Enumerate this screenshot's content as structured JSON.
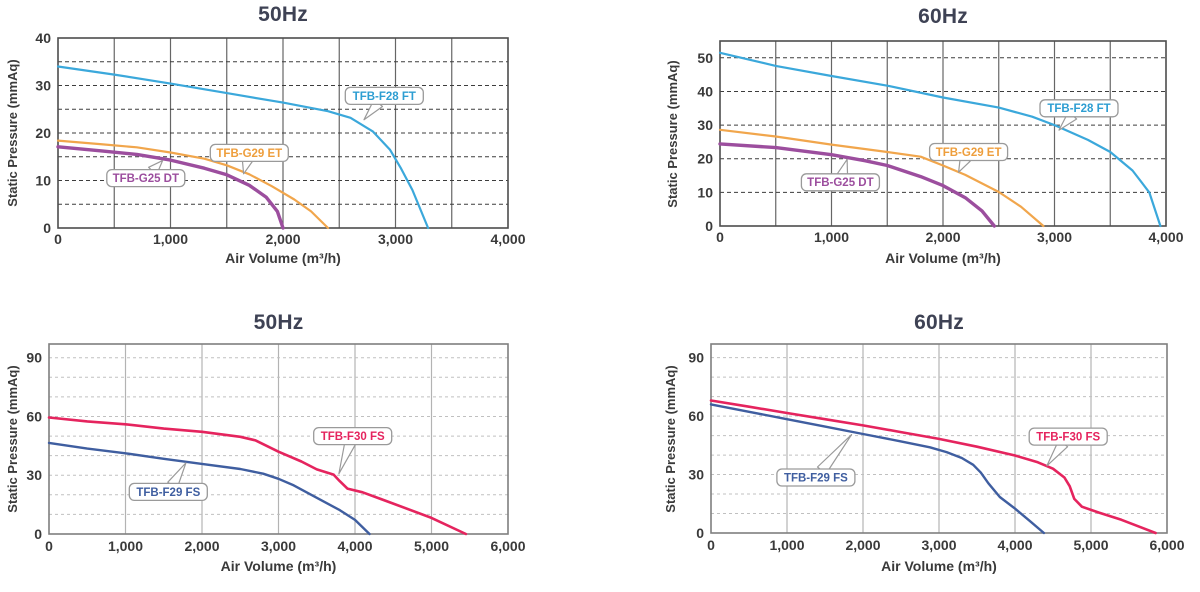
{
  "grid_themes": {
    "dark": {
      "vline": "#666666",
      "hdash": "#3d3d3d",
      "border": "#4d4d4d"
    },
    "light": {
      "vline": "#b3b3b3",
      "hdash": "#c0c0c0",
      "border": "#7f7f7f"
    }
  },
  "callout_style": {
    "bg": "#ffffff",
    "border": "#9a9a9a"
  },
  "chart_data": [
    {
      "id": "upper-50hz",
      "type": "line",
      "title": "50Hz",
      "xlabel": "Air Volume (m³/h)",
      "ylabel": "Static Pressure (mmAq)",
      "xlim": [
        0,
        4000
      ],
      "ylim": [
        0,
        40
      ],
      "ytop": 40,
      "xgrid_step": 500,
      "ygrid_step": 5,
      "grid_theme": "dark",
      "xticks": [
        0,
        1000,
        2000,
        3000,
        4000
      ],
      "xtick_labels": [
        "0",
        "1,000",
        "2,000",
        "3,000",
        "4,000"
      ],
      "yticks": [
        0,
        10,
        20,
        30,
        40
      ],
      "series": [
        {
          "name": "TFB-F28 FT",
          "color": "#3ba8db",
          "width": 2.2,
          "points": [
            [
              0,
              34
            ],
            [
              500,
              32.3
            ],
            [
              1000,
              30.4
            ],
            [
              1500,
              28.4
            ],
            [
              2000,
              26.4
            ],
            [
              2400,
              24.6
            ],
            [
              2600,
              23.2
            ],
            [
              2800,
              20.3
            ],
            [
              2950,
              16.5
            ],
            [
              3050,
              12.5
            ],
            [
              3150,
              8
            ],
            [
              3290,
              0
            ]
          ]
        },
        {
          "name": "TFB-G29 ET",
          "color": "#f1a64c",
          "width": 2.2,
          "points": [
            [
              0,
              18.4
            ],
            [
              400,
              17.6
            ],
            [
              700,
              17
            ],
            [
              1000,
              15.9
            ],
            [
              1300,
              14.6
            ],
            [
              1500,
              13.2
            ],
            [
              1700,
              11.3
            ],
            [
              1900,
              8.8
            ],
            [
              2100,
              6
            ],
            [
              2250,
              3.5
            ],
            [
              2400,
              0
            ]
          ]
        },
        {
          "name": "TFB-G25 DT",
          "color": "#9c4e9e",
          "width": 3.4,
          "points": [
            [
              0,
              17.1
            ],
            [
              400,
              16.2
            ],
            [
              700,
              15.5
            ],
            [
              1000,
              14.3
            ],
            [
              1300,
              12.6
            ],
            [
              1500,
              11.2
            ],
            [
              1700,
              9
            ],
            [
              1850,
              6.5
            ],
            [
              1950,
              3.5
            ],
            [
              2000,
              0
            ]
          ]
        }
      ],
      "callouts": [
        {
          "text": "TFB-F28 FT",
          "color": "#2e9ed2",
          "box": [
            2900,
            27.8
          ],
          "tip": [
            2720,
            22.8
          ]
        },
        {
          "text": "TFB-G29 ET",
          "color": "#ee9e3c",
          "box": [
            1700,
            15.8
          ],
          "tip": [
            1650,
            11.4
          ]
        },
        {
          "text": "TFB-G25 DT",
          "color": "#9c4e9e",
          "box": [
            780,
            10.5
          ],
          "tip": [
            930,
            14.2
          ]
        }
      ]
    },
    {
      "id": "upper-60hz",
      "type": "line",
      "title": "60Hz",
      "xlabel": "Air Volume (m³/h)",
      "ylabel": "Static Pressure (mmAq)",
      "xlim": [
        0,
        4000
      ],
      "ylim": [
        0,
        50
      ],
      "ytop": 55,
      "xgrid_step": 500,
      "ygrid_step": 10,
      "grid_theme": "dark",
      "xticks": [
        0,
        1000,
        2000,
        3000,
        4000
      ],
      "xtick_labels": [
        "0",
        "1,000",
        "2,000",
        "3,000",
        "4,000"
      ],
      "yticks": [
        0,
        10,
        20,
        30,
        40,
        50
      ],
      "series": [
        {
          "name": "TFB-F28 FT",
          "color": "#3ba8db",
          "width": 2.2,
          "points": [
            [
              0,
              51.5
            ],
            [
              500,
              47.6
            ],
            [
              1000,
              44.6
            ],
            [
              1500,
              41.7
            ],
            [
              2000,
              38.2
            ],
            [
              2500,
              35.2
            ],
            [
              2800,
              32.5
            ],
            [
              3000,
              30
            ],
            [
              3300,
              25.6
            ],
            [
              3500,
              22
            ],
            [
              3700,
              16.5
            ],
            [
              3850,
              10
            ],
            [
              3950,
              0
            ]
          ]
        },
        {
          "name": "TFB-G29 ET",
          "color": "#f1a64c",
          "width": 2.2,
          "points": [
            [
              0,
              28.6
            ],
            [
              500,
              26.6
            ],
            [
              1000,
              24.2
            ],
            [
              1500,
              22
            ],
            [
              1800,
              20.6
            ],
            [
              2000,
              18
            ],
            [
              2200,
              15.2
            ],
            [
              2500,
              10.1
            ],
            [
              2700,
              5.7
            ],
            [
              2900,
              0
            ]
          ]
        },
        {
          "name": "TFB-G25 DT",
          "color": "#9c4e9e",
          "width": 3.4,
          "points": [
            [
              0,
              24.4
            ],
            [
              500,
              23.3
            ],
            [
              1000,
              21.2
            ],
            [
              1300,
              19.4
            ],
            [
              1500,
              18
            ],
            [
              1800,
              14.7
            ],
            [
              2000,
              12
            ],
            [
              2200,
              8.4
            ],
            [
              2350,
              4.5
            ],
            [
              2460,
              0
            ]
          ]
        }
      ],
      "callouts": [
        {
          "text": "TFB-F28 FT",
          "color": "#2e9ed2",
          "box": [
            3220,
            35
          ],
          "tip": [
            3040,
            28.5
          ]
        },
        {
          "text": "TFB-G29 ET",
          "color": "#ee9e3c",
          "box": [
            2230,
            22
          ],
          "tip": [
            2140,
            16
          ]
        },
        {
          "text": "TFB-G25 DT",
          "color": "#9c4e9e",
          "box": [
            1080,
            13
          ],
          "tip": [
            1140,
            19.8
          ]
        }
      ]
    },
    {
      "id": "lower-50hz",
      "type": "line",
      "title": "50Hz",
      "xlabel": "Air Volume (m³/h)",
      "ylabel": "Static Pressure (mmAq)",
      "xlim": [
        0,
        6000
      ],
      "ylim": [
        0,
        90
      ],
      "ytop": 97,
      "xgrid_step": 1000,
      "ygrid_step": 10,
      "grid_theme": "light",
      "xticks": [
        0,
        1000,
        2000,
        3000,
        4000,
        5000,
        6000
      ],
      "xtick_labels": [
        "0",
        "1,000",
        "2,000",
        "3,000",
        "4,000",
        "5,000",
        "6,000"
      ],
      "yticks": [
        0,
        30,
        60,
        90
      ],
      "series": [
        {
          "name": "TFB-F30 FS",
          "color": "#e5245e",
          "width": 2.6,
          "points": [
            [
              0,
              59.5
            ],
            [
              500,
              57.5
            ],
            [
              1000,
              56
            ],
            [
              1500,
              53.8
            ],
            [
              2000,
              52.2
            ],
            [
              2500,
              49.6
            ],
            [
              2700,
              47.8
            ],
            [
              3000,
              42
            ],
            [
              3300,
              37
            ],
            [
              3500,
              33
            ],
            [
              3720,
              30.3
            ],
            [
              3800,
              27
            ],
            [
              3900,
              23.2
            ],
            [
              4100,
              21.3
            ],
            [
              4500,
              15.5
            ],
            [
              5000,
              8.2
            ],
            [
              5450,
              0
            ]
          ]
        },
        {
          "name": "TFB-F29 FS",
          "color": "#3f5ea0",
          "width": 2.4,
          "points": [
            [
              0,
              46.5
            ],
            [
              500,
              43.6
            ],
            [
              1000,
              41.2
            ],
            [
              1500,
              38.4
            ],
            [
              2000,
              35.8
            ],
            [
              2500,
              33.2
            ],
            [
              2800,
              30.8
            ],
            [
              3000,
              28.2
            ],
            [
              3200,
              24.8
            ],
            [
              3500,
              18.5
            ],
            [
              3800,
              12.2
            ],
            [
              4000,
              7.2
            ],
            [
              4190,
              0
            ]
          ]
        }
      ],
      "callouts": [
        {
          "text": "TFB-F30 FS",
          "color": "#e5245e",
          "box": [
            3970,
            50
          ],
          "tip": [
            3790,
            30.8
          ]
        },
        {
          "text": "TFB-F29 FS",
          "color": "#3f5ea0",
          "box": [
            1560,
            21.5
          ],
          "tip": [
            1790,
            36.3
          ]
        }
      ]
    },
    {
      "id": "lower-60hz",
      "type": "line",
      "title": "60Hz",
      "xlabel": "Air Volume (m³/h)",
      "ylabel": "Static Pressure (mmAq)",
      "xlim": [
        0,
        6000
      ],
      "ylim": [
        0,
        90
      ],
      "ytop": 97,
      "xgrid_step": 1000,
      "ygrid_step": 10,
      "grid_theme": "light",
      "xticks": [
        0,
        1000,
        2000,
        3000,
        4000,
        5000,
        6000
      ],
      "xtick_labels": [
        "0",
        "1,000",
        "2,000",
        "3,000",
        "4,000",
        "5,000",
        "6,000"
      ],
      "yticks": [
        0,
        30,
        60,
        90
      ],
      "series": [
        {
          "name": "TFB-F30 FS",
          "color": "#e5245e",
          "width": 2.6,
          "points": [
            [
              0,
              68
            ],
            [
              500,
              64.8
            ],
            [
              1000,
              61.6
            ],
            [
              1500,
              58.4
            ],
            [
              2000,
              55.2
            ],
            [
              2500,
              51.8
            ],
            [
              3000,
              48.3
            ],
            [
              3500,
              44.3
            ],
            [
              4000,
              39.8
            ],
            [
              4300,
              36.3
            ],
            [
              4500,
              33
            ],
            [
              4650,
              28.5
            ],
            [
              4720,
              24
            ],
            [
              4780,
              17.5
            ],
            [
              4880,
              13.5
            ],
            [
              5100,
              10.5
            ],
            [
              5400,
              6.8
            ],
            [
              5850,
              0
            ]
          ]
        },
        {
          "name": "TFB-F29 FS",
          "color": "#3f5ea0",
          "width": 2.4,
          "points": [
            [
              0,
              66
            ],
            [
              500,
              62.2
            ],
            [
              1000,
              58.4
            ],
            [
              1500,
              54.6
            ],
            [
              2000,
              50.8
            ],
            [
              2500,
              47
            ],
            [
              2880,
              44
            ],
            [
              3100,
              41.5
            ],
            [
              3300,
              38.5
            ],
            [
              3450,
              35
            ],
            [
              3550,
              31
            ],
            [
              3650,
              25.5
            ],
            [
              3800,
              18.5
            ],
            [
              4000,
              12.5
            ],
            [
              4200,
              6
            ],
            [
              4380,
              0
            ]
          ]
        }
      ],
      "callouts": [
        {
          "text": "TFB-F30 FS",
          "color": "#e5245e",
          "box": [
            4700,
            49.5
          ],
          "tip": [
            4420,
            34.5
          ]
        },
        {
          "text": "TFB-F29 FS",
          "color": "#3f5ea0",
          "box": [
            1380,
            28.5
          ],
          "tip": [
            1850,
            50.5
          ]
        }
      ]
    }
  ]
}
